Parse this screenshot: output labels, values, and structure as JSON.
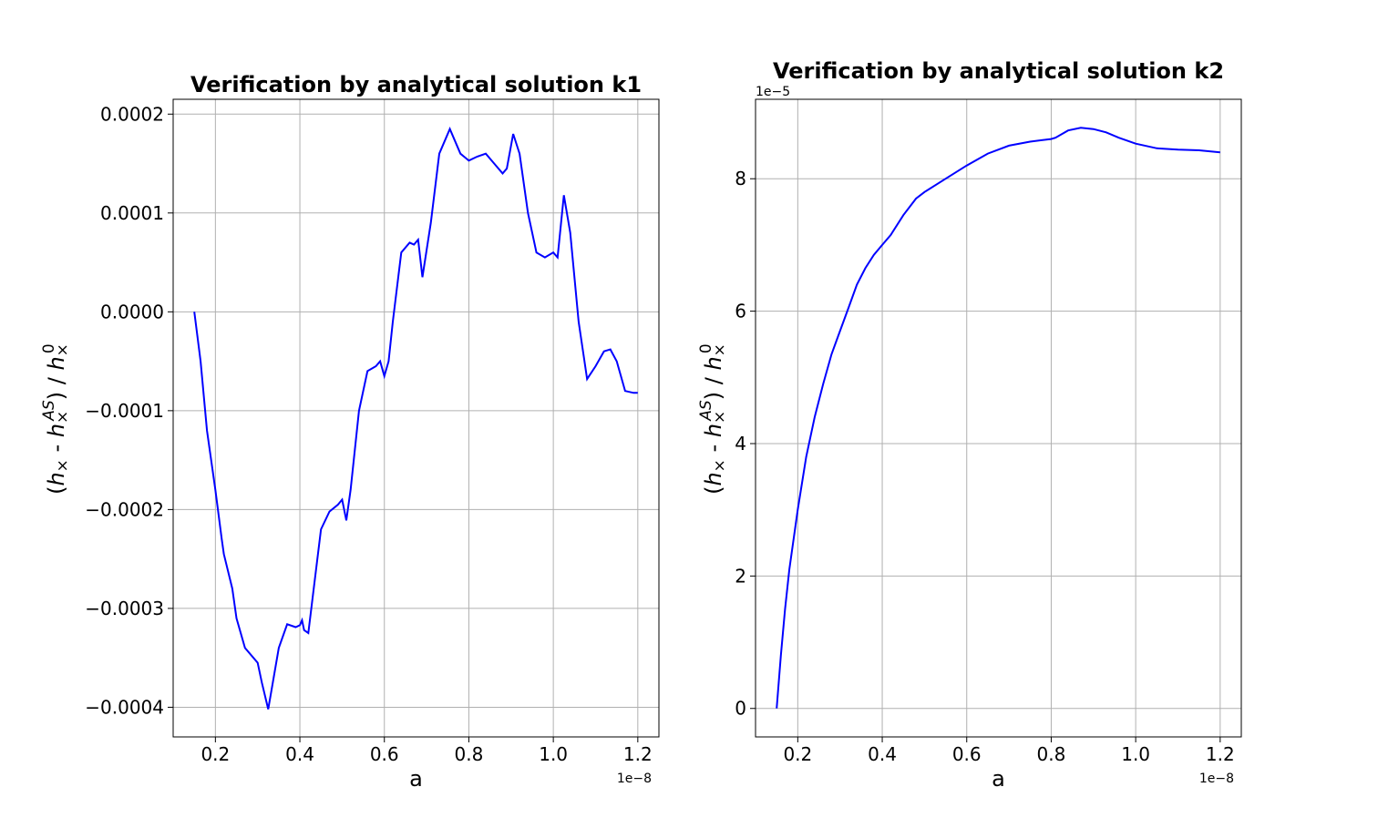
{
  "chart_data": [
    {
      "type": "line",
      "title": "Verification by analytical solution k1",
      "xlabel": "a",
      "ylabel": "(h× - h×^AS) / h×^0",
      "x_offset_text": "1e−8",
      "y_offset_text": "",
      "xlim": [
        0.1,
        1.25
      ],
      "ylim": [
        -0.00043,
        0.000215
      ],
      "xticks": [
        0.2,
        0.4,
        0.6,
        0.8,
        1.0,
        1.2
      ],
      "xtick_labels": [
        "0.2",
        "0.4",
        "0.6",
        "0.8",
        "1.0",
        "1.2"
      ],
      "yticks": [
        -0.0004,
        -0.0003,
        -0.0002,
        -0.0001,
        0.0,
        0.0001,
        0.0002
      ],
      "ytick_labels": [
        "−0.0004",
        "−0.0003",
        "−0.0002",
        "−0.0001",
        "0.0000",
        "0.0001",
        "0.0002"
      ],
      "grid": true,
      "color": "#0000ff",
      "series": [
        {
          "x": [
            0.15,
            0.165,
            0.18,
            0.2,
            0.215,
            0.22,
            0.24,
            0.25,
            0.27,
            0.3,
            0.31,
            0.325,
            0.35,
            0.37,
            0.39,
            0.4,
            0.405,
            0.41,
            0.42,
            0.43,
            0.45,
            0.47,
            0.49,
            0.5,
            0.51,
            0.52,
            0.54,
            0.56,
            0.58,
            0.59,
            0.6,
            0.61,
            0.62,
            0.64,
            0.66,
            0.67,
            0.68,
            0.69,
            0.71,
            0.73,
            0.755,
            0.78,
            0.8,
            0.82,
            0.84,
            0.86,
            0.88,
            0.89,
            0.905,
            0.92,
            0.94,
            0.96,
            0.98,
            1.0,
            1.01,
            1.025,
            1.04,
            1.06,
            1.08,
            1.1,
            1.12,
            1.135,
            1.15,
            1.17,
            1.19,
            1.2
          ],
          "y": [
            0.0,
            -5e-05,
            -0.00012,
            -0.00018,
            -0.00023,
            -0.000245,
            -0.00028,
            -0.00031,
            -0.00034,
            -0.000355,
            -0.000375,
            -0.000402,
            -0.00034,
            -0.000316,
            -0.000319,
            -0.000317,
            -0.000312,
            -0.000322,
            -0.000325,
            -0.00029,
            -0.00022,
            -0.000202,
            -0.000195,
            -0.00019,
            -0.000211,
            -0.00018,
            -0.0001,
            -6e-05,
            -5.5e-05,
            -5e-05,
            -6.5e-05,
            -5e-05,
            -1e-05,
            6e-05,
            7e-05,
            6.8e-05,
            7.3e-05,
            3.5e-05,
            9e-05,
            0.00016,
            0.000185,
            0.00016,
            0.000153,
            0.000157,
            0.00016,
            0.00015,
            0.00014,
            0.000145,
            0.00018,
            0.00016,
            0.0001,
            6e-05,
            5.5e-05,
            6e-05,
            5.5e-05,
            0.000118,
            8e-05,
            -1e-05,
            -6.8e-05,
            -5.5e-05,
            -4e-05,
            -3.8e-05,
            -5e-05,
            -8e-05,
            -8.2e-05,
            -8.2e-05
          ]
        }
      ]
    },
    {
      "type": "line",
      "title": "Verification by analytical solution k2",
      "xlabel": "a",
      "ylabel": "(h× - h×^AS) / h×^0",
      "x_offset_text": "1e−8",
      "y_offset_text": "1e−5",
      "xlim": [
        0.1,
        1.25
      ],
      "ylim": [
        -0.43,
        9.2
      ],
      "xticks": [
        0.2,
        0.4,
        0.6,
        0.8,
        1.0,
        1.2
      ],
      "xtick_labels": [
        "0.2",
        "0.4",
        "0.6",
        "0.8",
        "1.0",
        "1.2"
      ],
      "yticks": [
        0,
        2,
        4,
        6,
        8
      ],
      "ytick_labels": [
        "0",
        "2",
        "4",
        "6",
        "8"
      ],
      "grid": true,
      "color": "#0000ff",
      "series": [
        {
          "x": [
            0.15,
            0.16,
            0.17,
            0.18,
            0.2,
            0.22,
            0.24,
            0.26,
            0.28,
            0.3,
            0.32,
            0.34,
            0.36,
            0.38,
            0.4,
            0.42,
            0.45,
            0.48,
            0.5,
            0.55,
            0.6,
            0.65,
            0.7,
            0.75,
            0.8,
            0.81,
            0.84,
            0.87,
            0.9,
            0.93,
            0.96,
            1.0,
            1.05,
            1.1,
            1.15,
            1.2
          ],
          "y": [
            0.0,
            0.8,
            1.5,
            2.1,
            3.0,
            3.8,
            4.4,
            4.9,
            5.35,
            5.7,
            6.05,
            6.4,
            6.65,
            6.85,
            7.0,
            7.15,
            7.45,
            7.7,
            7.8,
            8.0,
            8.2,
            8.38,
            8.5,
            8.56,
            8.6,
            8.62,
            8.73,
            8.77,
            8.75,
            8.7,
            8.62,
            8.53,
            8.46,
            8.44,
            8.43,
            8.4
          ]
        }
      ]
    }
  ]
}
